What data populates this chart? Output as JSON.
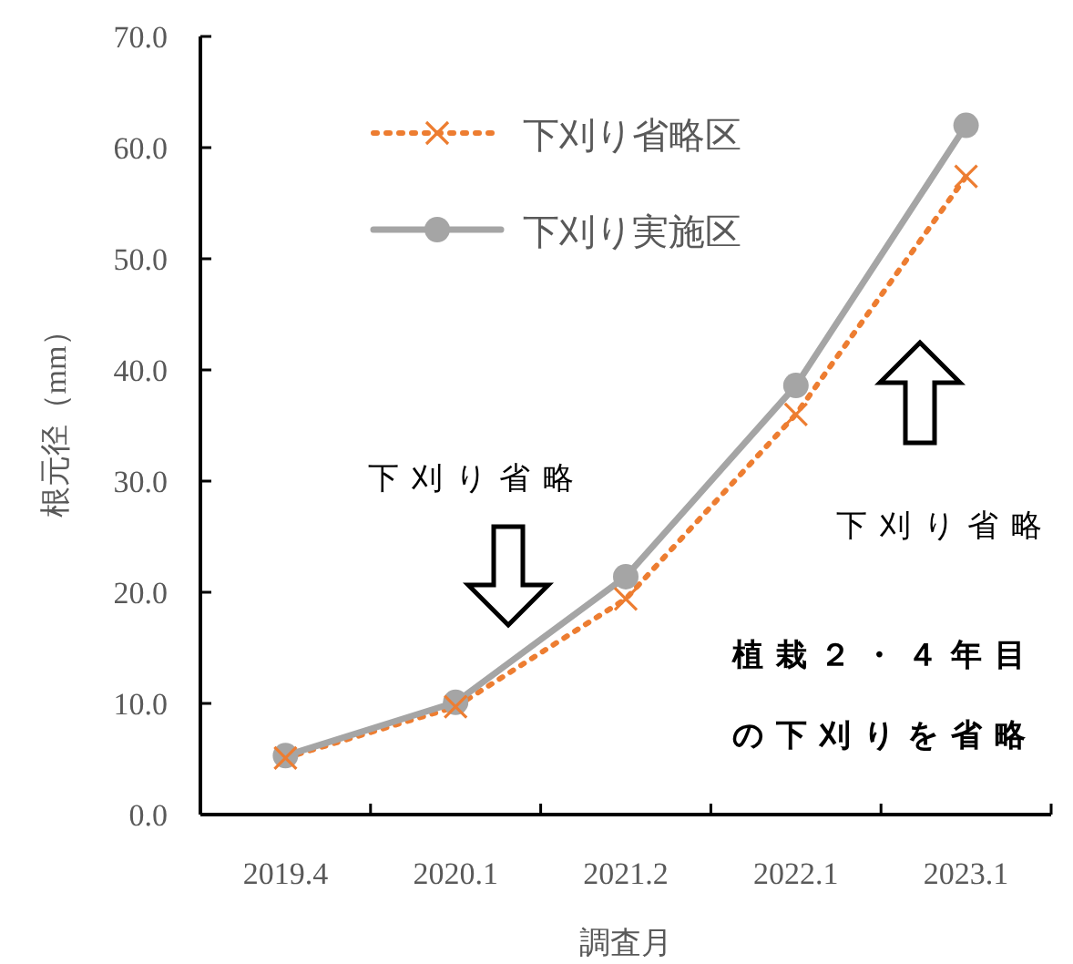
{
  "chart_data": {
    "type": "line",
    "categories": [
      "2019.4",
      "2020.1",
      "2021.2",
      "2022.1",
      "2023.1"
    ],
    "xlabel": "調査月",
    "ylabel": "根元径（mm）",
    "ylim": [
      0,
      70
    ],
    "yticks": [
      {
        "value": 0,
        "label": "0.0"
      },
      {
        "value": 10,
        "label": "10.0"
      },
      {
        "value": 20,
        "label": "20.0"
      },
      {
        "value": 30,
        "label": "30.0"
      },
      {
        "value": 40,
        "label": "40.0"
      },
      {
        "value": 50,
        "label": "50.0"
      },
      {
        "value": 60,
        "label": "60.0"
      },
      {
        "value": 70,
        "label": "70.0"
      }
    ],
    "grid": false,
    "legend": "top left",
    "series": [
      {
        "name": "下刈り省略区",
        "color": "#ed7d31",
        "marker": "cross",
        "line_style": "dotted",
        "values": [
          5.1,
          9.7,
          19.4,
          36.0,
          57.4
        ]
      },
      {
        "name": "下刈り実施区",
        "color": "#a5a5a5",
        "marker": "circle",
        "line_style": "solid",
        "values": [
          5.3,
          10.1,
          21.4,
          38.6,
          62.0
        ]
      }
    ],
    "annotations": [
      "下刈り省略",
      "下刈り省略",
      "植栽２・４年目の下刈りを省略"
    ]
  }
}
